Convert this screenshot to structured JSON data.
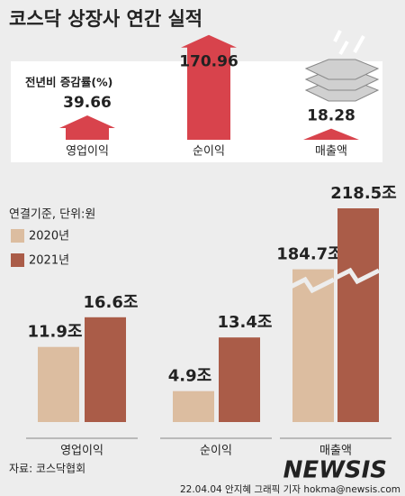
{
  "title": "코스닥 상장사 연간 실적",
  "chart_data": [
    {
      "type": "arrow",
      "title": "전년비 증감률(%)",
      "categories": [
        "영업이익",
        "순이익",
        "매출액"
      ],
      "values": [
        39.66,
        170.96,
        18.28
      ],
      "color": "#d8434c"
    },
    {
      "type": "bar",
      "note": "연결기준, 단위:원",
      "categories": [
        "영업이익",
        "순이익",
        "매출액"
      ],
      "series": [
        {
          "name": "2020년",
          "color": "#dcbda0",
          "values": [
            11.9,
            4.9,
            184.7
          ],
          "value_labels": [
            "11.9조",
            "4.9조",
            "184.7조"
          ]
        },
        {
          "name": "2021년",
          "color": "#aa5c48",
          "values": [
            16.6,
            13.4,
            218.5
          ],
          "value_labels": [
            "16.6조",
            "13.4조",
            "218.5조"
          ]
        }
      ]
    }
  ],
  "source": "자료: 코스닥협회",
  "credit": "22.04.04 안지혜 그래픽 기자 hokma@newsis.com",
  "logo": "NEWSIS"
}
